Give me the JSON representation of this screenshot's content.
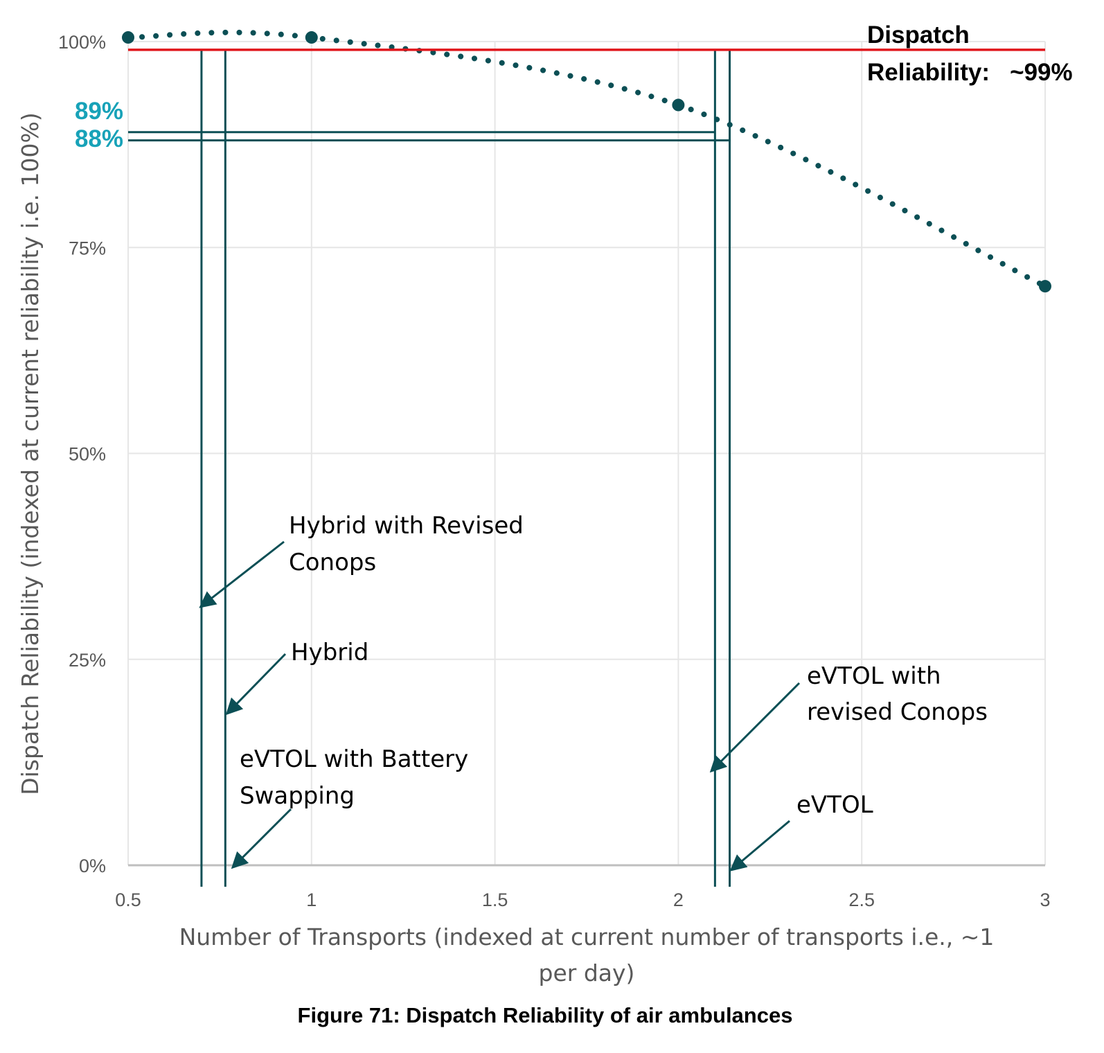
{
  "chart_data": {
    "type": "line",
    "xlabel_lines": [
      "Number of Transports (indexed at current number of transports i.e., ~1",
      "per day)"
    ],
    "ylabel": "Dispatch Reliability (indexed at current reliability i.e. 100%)",
    "xlim": [
      0.5,
      3
    ],
    "ylim": [
      0,
      1
    ],
    "x_ticks": [
      {
        "value": 0.5,
        "label": "0.5"
      },
      {
        "value": 1,
        "label": "1"
      },
      {
        "value": 1.5,
        "label": "1.5"
      },
      {
        "value": 2,
        "label": "2"
      },
      {
        "value": 2.5,
        "label": "2.5"
      },
      {
        "value": 3,
        "label": "3"
      }
    ],
    "y_ticks": [
      {
        "value": 0,
        "label": "0%"
      },
      {
        "value": 0.25,
        "label": "25%"
      },
      {
        "value": 0.5,
        "label": "50%"
      },
      {
        "value": 0.75,
        "label": "75%"
      },
      {
        "value": 1,
        "label": "100%"
      }
    ],
    "grid": true,
    "series": [
      {
        "style": "dotted",
        "color": "#0b4f55",
        "x": [
          0.5,
          1,
          2,
          3
        ],
        "y": [
          1.005,
          1.005,
          0.923,
          0.703
        ]
      }
    ],
    "reference_line": {
      "y": 0.99,
      "color": "#e0161b",
      "label_lines": [
        "Dispatch",
        "Reliability:   ~99%"
      ]
    },
    "threshold_lines": [
      {
        "y": 0.89,
        "label": "89%",
        "x_end": 2.1
      },
      {
        "y": 0.88,
        "label": "88%",
        "x_end": 2.14
      }
    ],
    "threshold_color": "#17a2b8",
    "vertical_markers": [
      {
        "x": 0.7,
        "label_lines": [
          "Hybrid with Revised",
          "Conops"
        ]
      },
      {
        "x": 0.765,
        "label_lines": [
          "Hybrid"
        ]
      },
      {
        "x": 2.1,
        "label_lines": [
          "eVTOL with",
          "revised Conops"
        ]
      },
      {
        "x": 2.14,
        "label_lines": [
          "eVTOL"
        ]
      }
    ],
    "extra_annotations": [
      {
        "label_lines": [
          "eVTOL with Battery",
          "Swapping"
        ]
      }
    ],
    "marker_color": "#0b4f55"
  },
  "caption": "Figure 71: Dispatch Reliability of air ambulances"
}
